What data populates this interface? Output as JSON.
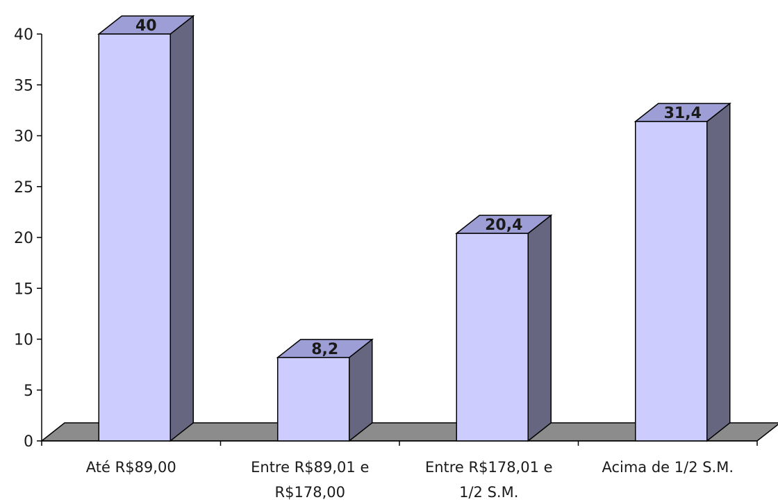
{
  "chart_data": {
    "type": "bar",
    "style": "3d-column",
    "categories": [
      [
        "Até R$89,00"
      ],
      [
        "Entre R$89,01 e",
        "R$178,00"
      ],
      [
        "Entre R$178,01 e",
        "1/2 S.M."
      ],
      [
        "Acima de 1/2 S.M."
      ]
    ],
    "values": [
      40,
      8.2,
      20.4,
      31.4
    ],
    "data_labels": [
      "40",
      "8,2",
      "20,4",
      "31,4"
    ],
    "ylim": [
      0,
      40
    ],
    "y_ticks": [
      0,
      5,
      10,
      15,
      20,
      25,
      30,
      35,
      40
    ],
    "title": "",
    "xlabel": "",
    "ylabel": "",
    "grid": false,
    "legend": "none",
    "colors": {
      "bar_front": "#ccccff",
      "bar_side": "#666680",
      "bar_top": "#9e9ed6",
      "floor": "#8c8c8c",
      "axis": "#000000"
    }
  }
}
